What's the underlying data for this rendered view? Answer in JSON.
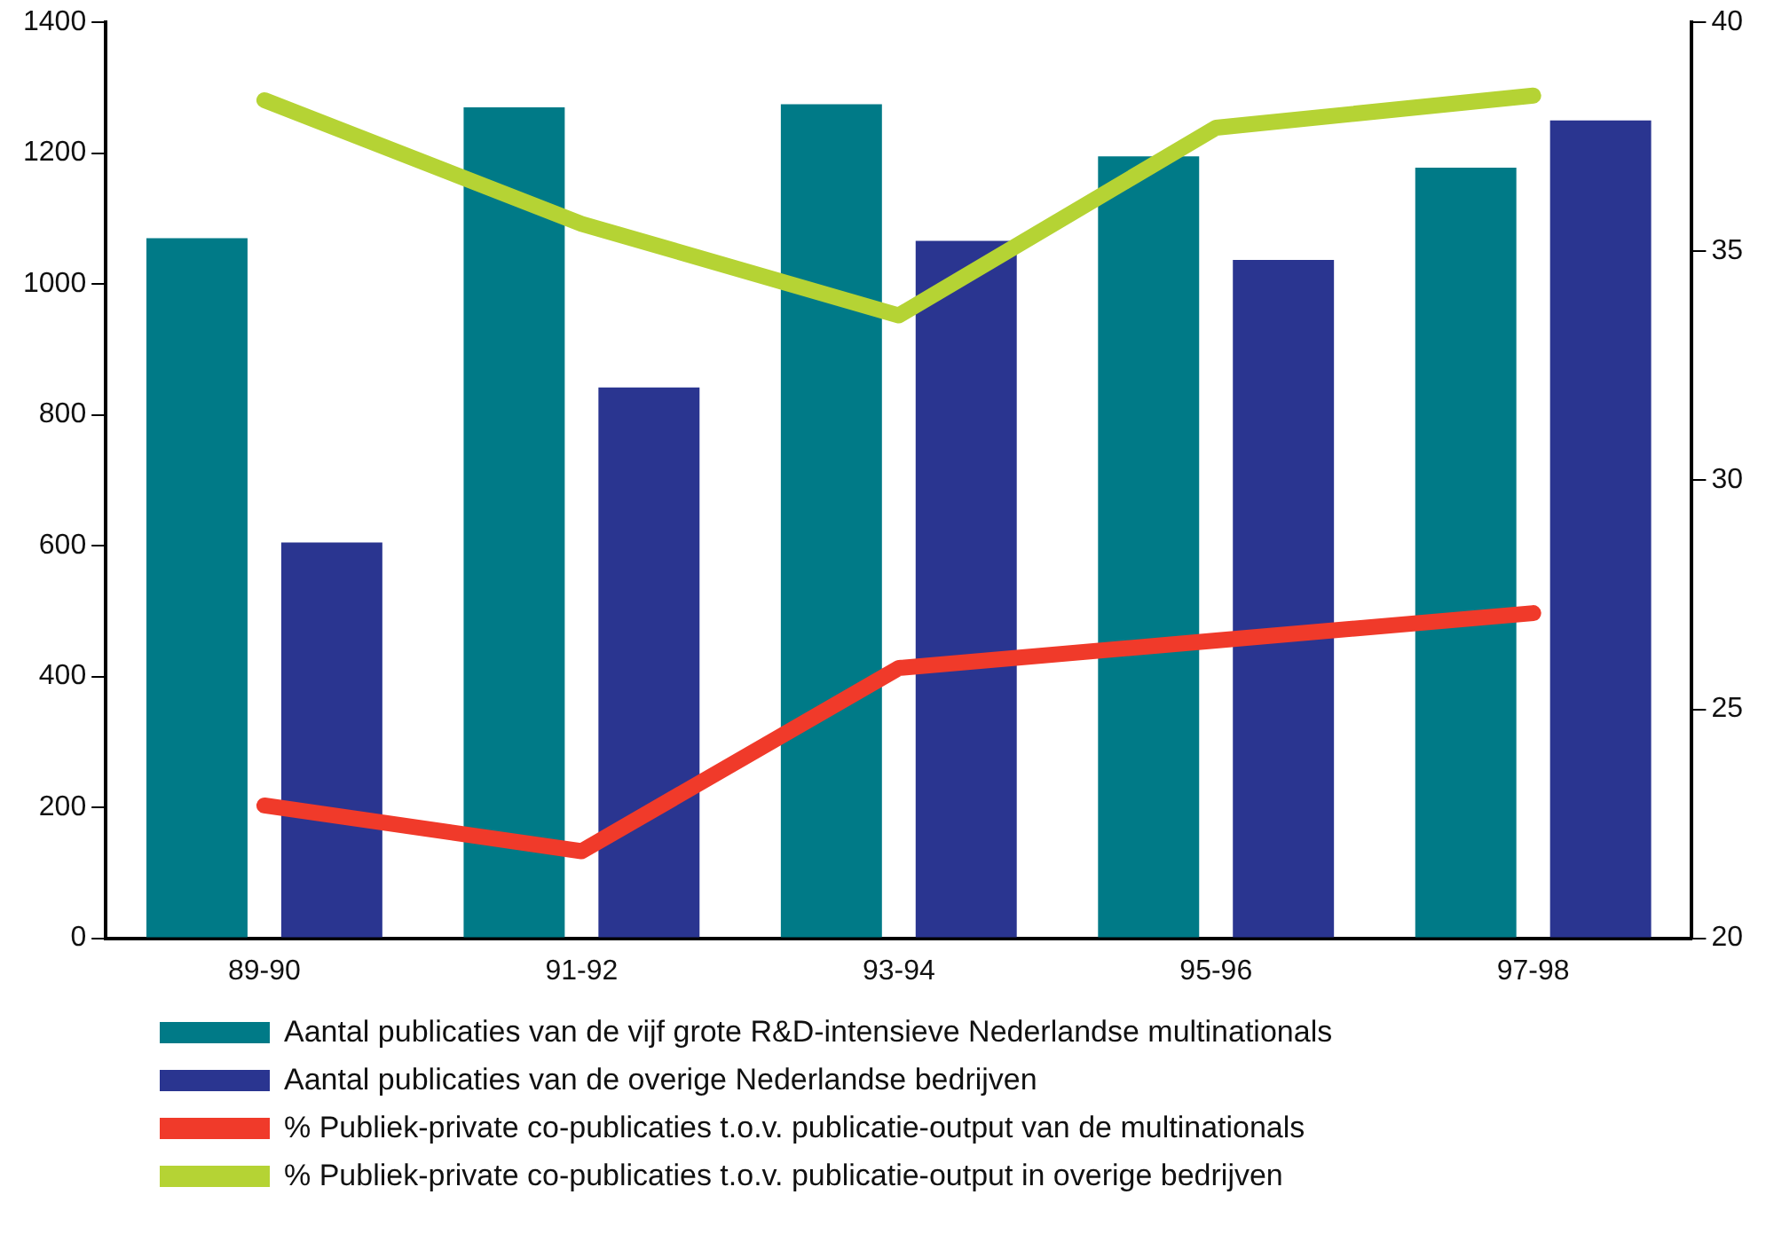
{
  "chart_data": {
    "type": "bar",
    "categories": [
      "89-90",
      "91-92",
      "93-94",
      "95-96",
      "97-98"
    ],
    "series": [
      {
        "name": "Aantal publicaties van de vijf grote R&D-intensieve Nederlandse multinationals",
        "color": "#007a87",
        "values": [
          1070,
          1270,
          1275,
          1195,
          1178
        ]
      },
      {
        "name": "Aantal publicaties van de overige Nederlandse bedrijven",
        "color": "#2a3590",
        "values": [
          605,
          842,
          1066,
          1037,
          1250
        ]
      },
      {
        "name": "% Publiek-private co-publicaties t.o.v. publicatie-output van de multinationals",
        "color": "#f03a2a",
        "type": "line",
        "axis": "y2",
        "values": [
          22.9,
          21.9,
          25.9,
          26.5,
          27.1
        ]
      },
      {
        "name": "% Publiek-private co-publicaties t.o.v. publicatie-output in overige bedrijven",
        "color": "#b5d334",
        "type": "line",
        "axis": "y2",
        "values": [
          38.3,
          35.6,
          33.6,
          37.7,
          38.4
        ]
      }
    ],
    "ylim": [
      0,
      1400
    ],
    "yticks": [
      0,
      200,
      400,
      600,
      800,
      1000,
      1200,
      1400
    ],
    "y2lim": [
      20,
      40
    ],
    "y2ticks": [
      20,
      25,
      30,
      35,
      40
    ],
    "grid": false,
    "legend": "bottom",
    "marker": "none",
    "line_style": "solid"
  }
}
